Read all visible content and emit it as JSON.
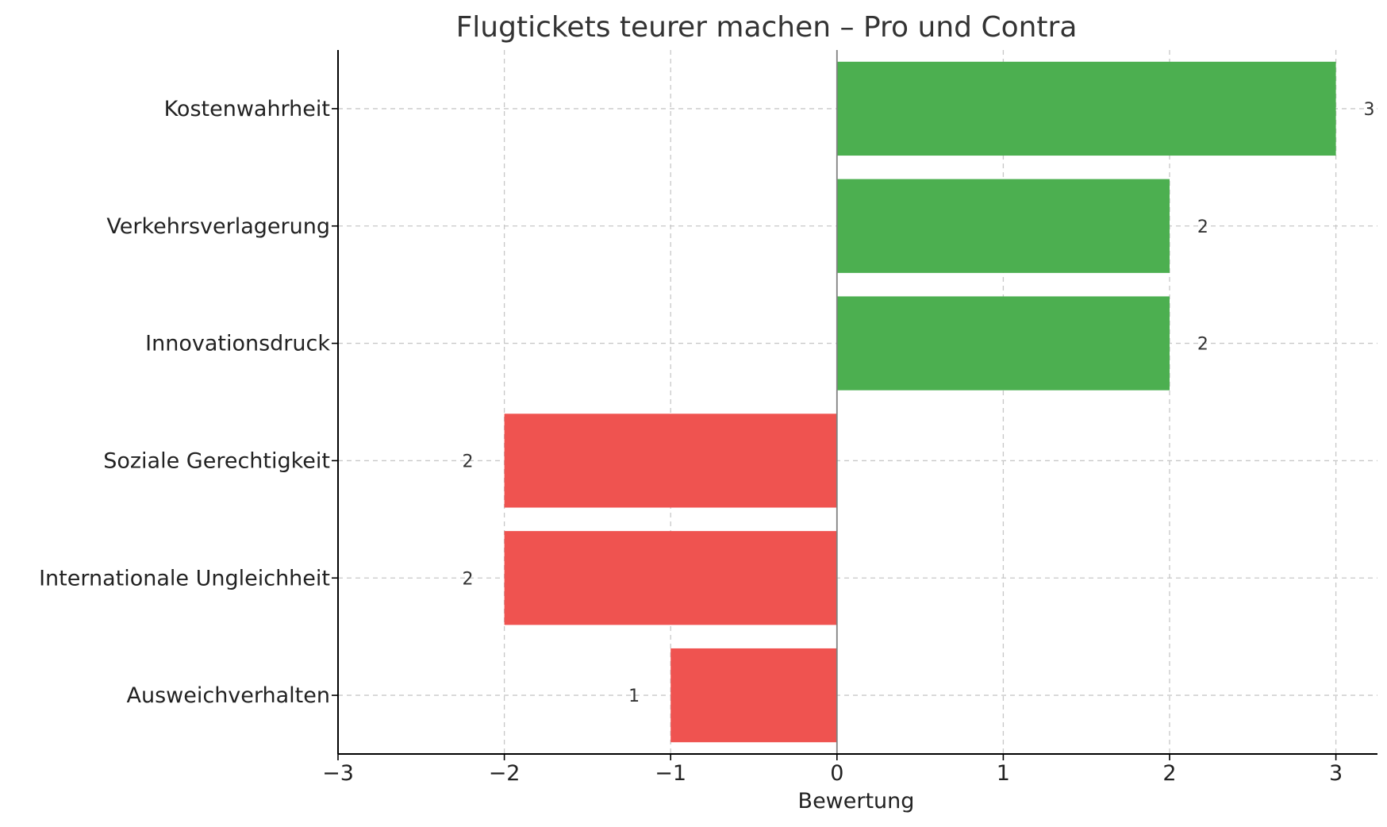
{
  "chart_data": {
    "type": "bar",
    "orientation": "horizontal",
    "title": "Flugtickets teurer machen – Pro und Contra",
    "xlabel": "Bewertung",
    "ylabel": "",
    "xlim": [
      -3,
      3.25
    ],
    "xticks": [
      "−3",
      "−2",
      "−1",
      "0",
      "1",
      "2",
      "3"
    ],
    "xtick_values": [
      -3,
      -2,
      -1,
      0,
      1,
      2,
      3
    ],
    "grid": true,
    "categories": [
      "Kostenwahrheit",
      "Verkehrsverlagerung",
      "Innovationsdruck",
      "Soziale Gerechtigkeit",
      "Internationale Ungleichheit",
      "Ausweichverhalten"
    ],
    "values": [
      3,
      2,
      2,
      -2,
      -2,
      -1
    ],
    "value_labels": [
      "3",
      "2",
      "2",
      "2",
      "2",
      "1"
    ],
    "colors": {
      "positive": "#4caf50",
      "negative": "#ef5350"
    }
  }
}
